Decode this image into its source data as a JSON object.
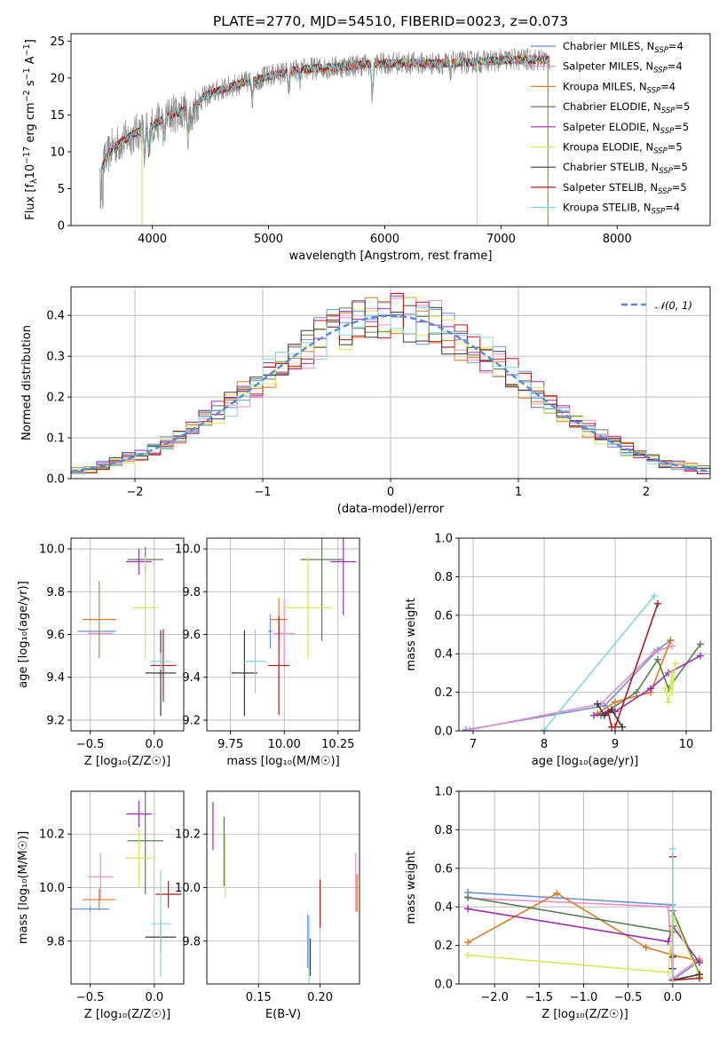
{
  "figure_title": "PLATE=2770, MJD=54510, FIBERID=0023, z=0.073",
  "colors": {
    "Chabrier MILES": "#6b8fd8",
    "Salpeter MILES": "#ea8ec3",
    "Kroupa MILES": "#e07a22",
    "Chabrier ELODIE": "#5b7f55",
    "Salpeter ELODIE": "#9b2fb0",
    "Kroupa ELODIE": "#d6e75a",
    "Chabrier STELIB": "#3a3a3a",
    "Salpeter STELIB": "#b11a1a",
    "Kroupa STELIB": "#84d6de",
    "data": "#8c8c8c",
    "gaussian": "#5b87d6"
  },
  "chart_data": [
    {
      "id": "spectrum",
      "type": "line",
      "title": "PLATE=2770, MJD=54510, FIBERID=0023, z=0.073",
      "xlabel": "wavelength [Angstrom, rest frame]",
      "ylabel_parts": [
        "Flux [f",
        "λ",
        "10",
        "−17",
        " erg cm",
        "−2",
        " s",
        "−1",
        " A",
        "−1",
        "]"
      ],
      "xlim": [
        3300,
        8800
      ],
      "ylim": [
        0,
        26
      ],
      "xticks": [
        4000,
        5000,
        6000,
        7000,
        8000
      ],
      "yticks": [
        0,
        5,
        10,
        15,
        20,
        25
      ],
      "continuum": {
        "x": [
          3550,
          3650,
          3750,
          3850,
          3950,
          4050,
          4150,
          4250,
          4350,
          4450,
          4550,
          4700,
          4850,
          5000,
          5200,
          5400,
          5600,
          5800,
          6000,
          6200,
          6500,
          6800,
          7100,
          7400
        ],
        "y": [
          7.5,
          10.5,
          11.5,
          12.5,
          13.2,
          14.0,
          15.0,
          15.5,
          16.0,
          17.5,
          18.2,
          19.0,
          19.6,
          20.2,
          21.0,
          21.3,
          21.5,
          21.8,
          22.0,
          22.0,
          22.0,
          22.2,
          22.5,
          22.5
        ]
      },
      "absorption_lines": [
        {
          "x": 3934,
          "depth": 4.5
        },
        {
          "x": 3969,
          "depth": 4.0
        },
        {
          "x": 4102,
          "depth": 3.0
        },
        {
          "x": 4304,
          "depth": 4.0
        },
        {
          "x": 4341,
          "depth": 3.0
        },
        {
          "x": 4861,
          "depth": 2.5
        },
        {
          "x": 5175,
          "depth": 3.0
        },
        {
          "x": 5270,
          "depth": 1.5
        },
        {
          "x": 5893,
          "depth": 5.0
        },
        {
          "x": 6563,
          "depth": 1.5
        }
      ],
      "spikes": [
        {
          "x": 3910,
          "to": 0
        },
        {
          "x": 6795,
          "to": 0
        },
        {
          "x": 7405,
          "to": 0
        }
      ],
      "series": [
        {
          "name": "Chabrier MILES",
          "n_ssp": "4"
        },
        {
          "name": "Salpeter MILES",
          "n_ssp": "4"
        },
        {
          "name": "Kroupa MILES",
          "n_ssp": "4"
        },
        {
          "name": "Chabrier ELODIE",
          "n_ssp": "5"
        },
        {
          "name": "Salpeter ELODIE",
          "n_ssp": "5"
        },
        {
          "name": "Kroupa ELODIE",
          "n_ssp": "5"
        },
        {
          "name": "Chabrier STELIB",
          "n_ssp": "5"
        },
        {
          "name": "Salpeter STELIB",
          "n_ssp": "5"
        },
        {
          "name": "Kroupa STELIB",
          "n_ssp": "4"
        }
      ],
      "legend_suffix": "N",
      "legend_sub": "SSP",
      "legend": "top-right"
    },
    {
      "id": "residuals",
      "type": "histogram",
      "xlabel": "(data-model)/error",
      "ylabel": "Normed distribution",
      "xlim": [
        -2.5,
        2.5
      ],
      "ylim": [
        0,
        0.47
      ],
      "xticks": [
        -2,
        -1,
        0,
        1,
        2
      ],
      "yticks": [
        0.0,
        0.1,
        0.2,
        0.3,
        0.4
      ],
      "bin_width": 0.1,
      "grid": true,
      "gaussian_label": "𝒩(0, 1)",
      "legend": "top-right"
    },
    {
      "id": "age_vs_Z",
      "type": "errorbar",
      "xlabel": "Z [log₁₀(Z/Z☉)]",
      "ylabel": "age  [log₁₀(age/yr)]",
      "xlim": [
        -0.65,
        0.23
      ],
      "ylim": [
        9.15,
        10.05
      ],
      "xticks": [
        -0.5,
        0.0
      ],
      "yticks": [
        9.2,
        9.4,
        9.6,
        9.8,
        10.0
      ],
      "grid": true,
      "points": [
        {
          "series": "Chabrier MILES",
          "x": -0.45,
          "xerr": 0.15,
          "y": 9.615,
          "yerr": 0.001
        },
        {
          "series": "Salpeter MILES",
          "x": -0.42,
          "xerr": 0.1,
          "y": 9.605,
          "yerr": 0.001
        },
        {
          "series": "Kroupa MILES",
          "x": -0.43,
          "xerr": 0.13,
          "y": 9.67,
          "yerr": 0.18
        },
        {
          "series": "Chabrier ELODIE",
          "x": -0.07,
          "xerr": 0.14,
          "y": 9.95,
          "yerr": 0.06
        },
        {
          "series": "Salpeter ELODIE",
          "x": -0.12,
          "xerr": 0.1,
          "y": 9.94,
          "yerr": 0.06
        },
        {
          "series": "Kroupa ELODIE",
          "x": -0.07,
          "xerr": 0.1,
          "y": 9.725,
          "yerr": 0.24
        },
        {
          "series": "Chabrier STELIB",
          "x": 0.05,
          "xerr": 0.12,
          "y": 9.42,
          "yerr": 0.2
        },
        {
          "series": "Salpeter STELIB",
          "x": 0.07,
          "xerr": 0.1,
          "y": 9.455,
          "yerr": 0.17
        },
        {
          "series": "Kroupa STELIB",
          "x": 0.05,
          "xerr": 0.08,
          "y": 9.475,
          "yerr": 0.04
        }
      ]
    },
    {
      "id": "age_vs_mass",
      "type": "errorbar",
      "xlabel": "mass [log₁₀(M/M☉)]",
      "ylabel": "",
      "xlim": [
        9.64,
        10.35
      ],
      "ylim": [
        9.15,
        10.05
      ],
      "xticks": [
        9.75,
        10.0,
        10.25
      ],
      "yticks": [
        9.2,
        9.4,
        9.6,
        9.8,
        10.0
      ],
      "grid": true,
      "points": [
        {
          "series": "Chabrier MILES",
          "x": 9.935,
          "xerr": 0.01,
          "y": 9.615,
          "yerr": 0.08
        },
        {
          "series": "Salpeter MILES",
          "x": 10.0,
          "xerr": 0.05,
          "y": 9.605,
          "yerr": 0.16
        },
        {
          "series": "Kroupa MILES",
          "x": 9.975,
          "xerr": 0.04,
          "y": 9.67,
          "yerr": 0.1
        },
        {
          "series": "Chabrier ELODIE",
          "x": 10.175,
          "xerr": 0.1,
          "y": 9.95,
          "yerr": 0.38
        },
        {
          "series": "Salpeter ELODIE",
          "x": 10.275,
          "xerr": 0.06,
          "y": 9.94,
          "yerr": 0.25
        },
        {
          "series": "Kroupa ELODIE",
          "x": 10.11,
          "xerr": 0.11,
          "y": 9.725,
          "yerr": 0.24
        },
        {
          "series": "Chabrier STELIB",
          "x": 9.815,
          "xerr": 0.06,
          "y": 9.42,
          "yerr": 0.2
        },
        {
          "series": "Salpeter STELIB",
          "x": 9.975,
          "xerr": 0.05,
          "y": 9.455,
          "yerr": 0.23
        },
        {
          "series": "Kroupa STELIB",
          "x": 9.865,
          "xerr": 0.05,
          "y": 9.475,
          "yerr": 0.15
        }
      ]
    },
    {
      "id": "weight_vs_age",
      "type": "line",
      "xlabel": "age  [log₁₀(age/yr)]",
      "ylabel": "mass weight",
      "xlim": [
        6.8,
        10.35
      ],
      "ylim": [
        0,
        1.0
      ],
      "xticks": [
        7,
        8,
        9,
        10
      ],
      "yticks": [
        0.0,
        0.2,
        0.4,
        0.6,
        0.8,
        1.0
      ],
      "grid": true,
      "marker": "+",
      "series": [
        {
          "name": "Chabrier MILES",
          "x": [
            6.9,
            8.85,
            9.6,
            9.78
          ],
          "y": [
            0.005,
            0.13,
            0.42,
            0.47
          ]
        },
        {
          "name": "Salpeter MILES",
          "x": [
            6.95,
            8.8,
            9.55,
            9.8
          ],
          "y": [
            0.005,
            0.14,
            0.41,
            0.44
          ]
        },
        {
          "name": "Kroupa MILES",
          "x": [
            8.75,
            9.0,
            9.5,
            9.78
          ],
          "y": [
            0.09,
            0.15,
            0.2,
            0.47
          ]
        },
        {
          "name": "Chabrier ELODIE",
          "x": [
            8.8,
            9.3,
            9.6,
            9.75,
            10.2
          ],
          "y": [
            0.08,
            0.2,
            0.37,
            0.22,
            0.45
          ]
        },
        {
          "name": "Salpeter ELODIE",
          "x": [
            8.7,
            9.0,
            9.5,
            9.75,
            10.2
          ],
          "y": [
            0.08,
            0.1,
            0.22,
            0.3,
            0.39
          ]
        },
        {
          "name": "Kroupa ELODIE",
          "x": [
            9.7,
            9.75,
            9.8,
            9.8,
            9.85
          ],
          "y": [
            0.22,
            0.15,
            0.3,
            0.2,
            0.35
          ]
        },
        {
          "name": "Chabrier STELIB",
          "x": [
            8.75,
            8.85,
            8.95,
            9.1
          ],
          "y": [
            0.14,
            0.08,
            0.11,
            0.02
          ]
        },
        {
          "name": "Salpeter STELIB",
          "x": [
            8.9,
            8.95,
            9.0,
            9.6
          ],
          "y": [
            0.1,
            0.02,
            0.02,
            0.66
          ]
        },
        {
          "name": "Kroupa STELIB",
          "x": [
            8.0,
            9.55
          ],
          "y": [
            0.005,
            0.7
          ]
        }
      ]
    },
    {
      "id": "mass_vs_Z",
      "type": "errorbar",
      "xlabel": "Z [log₁₀(Z/Z☉)]",
      "ylabel": "mass [log₁₀(M/M☉)]",
      "xlim": [
        -0.65,
        0.23
      ],
      "ylim": [
        9.64,
        10.36
      ],
      "xticks": [
        -0.5,
        0.0
      ],
      "yticks": [
        9.8,
        10.0,
        10.2
      ],
      "grid": true,
      "points": [
        {
          "series": "Chabrier MILES",
          "x": -0.5,
          "xerr": 0.15,
          "y": 9.92,
          "yerr": 0.01
        },
        {
          "series": "Salpeter MILES",
          "x": -0.42,
          "xerr": 0.1,
          "y": 10.04,
          "yerr": 0.09
        },
        {
          "series": "Kroupa MILES",
          "x": -0.43,
          "xerr": 0.13,
          "y": 9.955,
          "yerr": 0.04
        },
        {
          "series": "Chabrier ELODIE",
          "x": -0.07,
          "xerr": 0.14,
          "y": 10.175,
          "yerr": 0.2
        },
        {
          "series": "Salpeter ELODIE",
          "x": -0.12,
          "xerr": 0.1,
          "y": 10.275,
          "yerr": 0.05
        },
        {
          "series": "Kroupa ELODIE",
          "x": -0.12,
          "xerr": 0.1,
          "y": 10.11,
          "yerr": 0.11
        },
        {
          "series": "Chabrier STELIB",
          "x": 0.05,
          "xerr": 0.12,
          "y": 9.815,
          "yerr": 0.06
        },
        {
          "series": "Salpeter STELIB",
          "x": 0.11,
          "xerr": 0.1,
          "y": 9.975,
          "yerr": 0.05
        },
        {
          "series": "Kroupa STELIB",
          "x": 0.05,
          "xerr": 0.08,
          "y": 9.865,
          "yerr": 0.2
        }
      ]
    },
    {
      "id": "mass_vs_ebv",
      "type": "errorbar",
      "xlabel": "E(B-V)",
      "ylabel": "",
      "xlim": [
        0.108,
        0.232
      ],
      "ylim": [
        9.64,
        10.36
      ],
      "xticks": [
        0.15,
        0.2
      ],
      "yticks": [
        9.8,
        10.0,
        10.2
      ],
      "grid": true,
      "points": [
        {
          "series": "Salpeter ELODIE",
          "x": 0.113,
          "xerr": 0.0,
          "y": 10.23,
          "yerr": 0.09
        },
        {
          "series": "Chabrier ELODIE",
          "x": 0.122,
          "xerr": 0.0,
          "y": 10.135,
          "yerr": 0.13
        },
        {
          "series": "Kroupa ELODIE",
          "x": 0.123,
          "xerr": 0.0,
          "y": 10.08,
          "yerr": 0.12
        },
        {
          "series": "Chabrier MILES",
          "x": 0.19,
          "xerr": 0.0,
          "y": 9.8,
          "yerr": 0.1
        },
        {
          "series": "Kroupa STELIB",
          "x": 0.191,
          "xerr": 0.0,
          "y": 9.765,
          "yerr": 0.13
        },
        {
          "series": "Chabrier STELIB",
          "x": 0.192,
          "xerr": 0.0,
          "y": 9.74,
          "yerr": 0.07
        },
        {
          "series": "Salpeter STELIB",
          "x": 0.2,
          "xerr": 0.0,
          "y": 9.94,
          "yerr": 0.09
        },
        {
          "series": "Salpeter MILES",
          "x": 0.229,
          "xerr": 0.0,
          "y": 10.02,
          "yerr": 0.11
        },
        {
          "series": "Kroupa MILES",
          "x": 0.23,
          "xerr": 0.0,
          "y": 9.98,
          "yerr": 0.07
        }
      ]
    },
    {
      "id": "weight_vs_Z",
      "type": "line",
      "xlabel": "Z [log₁₀(Z/Z☉)]",
      "ylabel": "mass weight",
      "xlim": [
        -2.4,
        0.43
      ],
      "ylim": [
        0,
        1.0
      ],
      "xticks": [
        -2.0,
        -1.5,
        -1.0,
        -0.5,
        0.0
      ],
      "yticks": [
        0.0,
        0.2,
        0.4,
        0.6,
        0.8,
        1.0
      ],
      "grid": true,
      "marker": "+",
      "series": [
        {
          "name": "Chabrier MILES",
          "x": [
            -2.3,
            -0.0,
            0.0,
            0.3
          ],
          "y": [
            0.475,
            0.41,
            0.02,
            0.12
          ]
        },
        {
          "name": "Salpeter MILES",
          "x": [
            -2.3,
            -0.05,
            0.0,
            0.3
          ],
          "y": [
            0.445,
            0.4,
            0.03,
            0.13
          ]
        },
        {
          "name": "Kroupa MILES",
          "x": [
            -2.3,
            -1.3,
            -0.3,
            0.0,
            0.3
          ],
          "y": [
            0.215,
            0.47,
            0.19,
            0.15,
            0.12
          ]
        },
        {
          "name": "Chabrier ELODIE",
          "x": [
            -2.3,
            0.0,
            0.0,
            0.3
          ],
          "y": [
            0.45,
            0.27,
            0.38,
            0.05
          ]
        },
        {
          "name": "Salpeter ELODIE",
          "x": [
            -2.3,
            -0.05,
            0.0,
            0.3
          ],
          "y": [
            0.39,
            0.22,
            0.3,
            0.11
          ]
        },
        {
          "name": "Kroupa ELODIE",
          "x": [
            -2.3,
            -0.05,
            0.0,
            0.3
          ],
          "y": [
            0.15,
            0.06,
            0.35,
            0.04
          ]
        },
        {
          "name": "Chabrier STELIB",
          "x": [
            0.0,
            0.0,
            0.0,
            0.3
          ],
          "y": [
            0.08,
            0.14,
            0.02,
            0.05
          ]
        },
        {
          "name": "Salpeter STELIB",
          "x": [
            0.0,
            0.0,
            0.0,
            0.3
          ],
          "y": [
            0.02,
            0.66,
            0.02,
            0.03
          ]
        },
        {
          "name": "Kroupa STELIB",
          "x": [
            0.0,
            0.0
          ],
          "y": [
            0.0,
            0.7
          ]
        }
      ]
    }
  ]
}
